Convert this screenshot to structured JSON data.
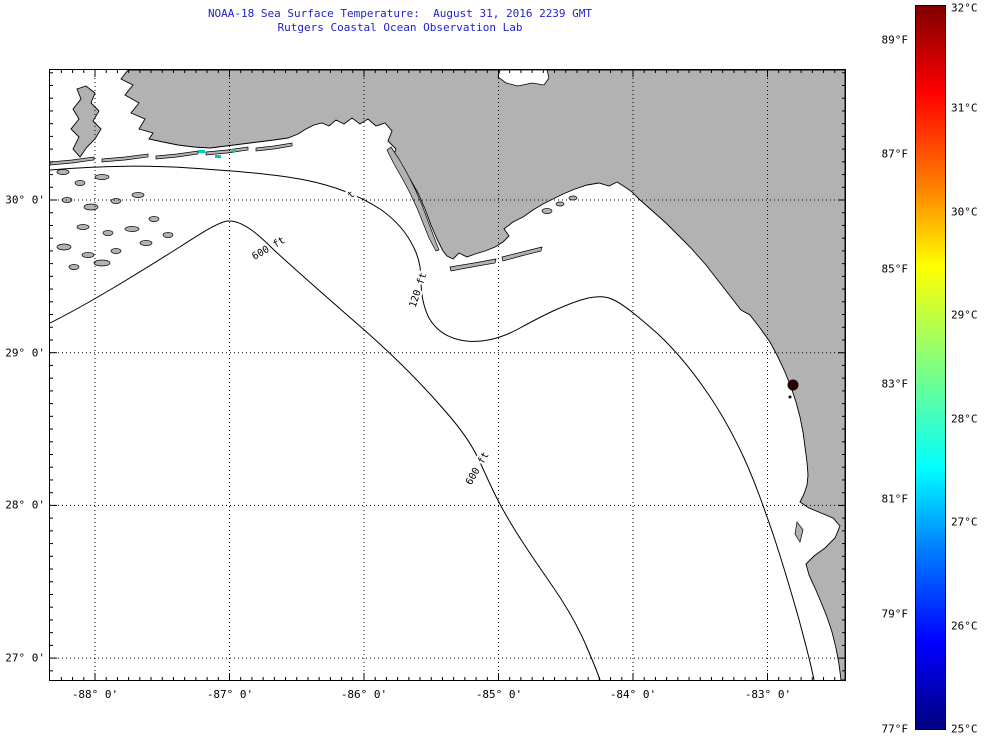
{
  "title": {
    "line1": "NOAA-18 Sea Surface Temperature:  August 31, 2016 2239 GMT",
    "line2": "Rutgers Coastal Ocean Observation Lab",
    "color": "#2222cc"
  },
  "map": {
    "region": "Northeastern Gulf of Mexico",
    "land_color": "#b2b2b2",
    "sea_color": "#ffffff",
    "coastline_color": "#000000",
    "sst_patch_color": "#00c8b4",
    "hotspot_color": "#250000",
    "x_tick_labels": [
      "-88° 0'",
      "-87° 0'",
      "-86° 0'",
      "-85° 0'",
      "-84° 0'",
      "-83° 0'"
    ],
    "y_tick_labels": [
      "30° 0'",
      "29° 0'",
      "28° 0'",
      "27° 0'"
    ],
    "contour_labels": [
      {
        "text": "600 ft"
      },
      {
        "text": "120 ft"
      },
      {
        "text": "600 ft"
      },
      {
        "text": "t"
      }
    ]
  },
  "colorbar": {
    "units_left": "Fahrenheit",
    "units_right": "Celsius",
    "range_celsius": [
      25,
      32
    ],
    "fahrenheit_labels": [
      "89°F",
      "87°F",
      "85°F",
      "83°F",
      "81°F",
      "79°F",
      "77°F"
    ],
    "celsius_labels": [
      "32°C",
      "31°C",
      "30°C",
      "29°C",
      "28°C",
      "27°C",
      "26°C",
      "25°C"
    ],
    "gradient_stops": [
      "#7f0000 0%",
      "#ff0000 12%",
      "#ff8000 25%",
      "#ffff00 36%",
      "#80ff80 50%",
      "#00ffff 64%",
      "#0080ff 75%",
      "#0000ff 88%",
      "#000080 100%"
    ]
  }
}
